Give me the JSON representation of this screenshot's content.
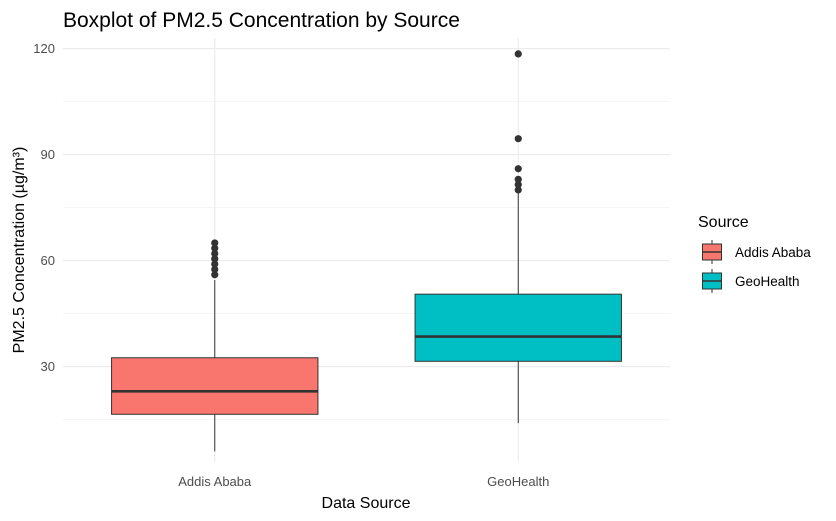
{
  "chart_data": {
    "type": "boxplot",
    "title": "Boxplot of PM2.5 Concentration by Source",
    "xlabel": "Data Source",
    "ylabel": "PM2.5 Concentration (µg/m³)",
    "ylim": [
      3,
      123
    ],
    "yticks": [
      30,
      60,
      90,
      120
    ],
    "categories": [
      "Addis Ababa",
      "GeoHealth"
    ],
    "grid": true,
    "legend": {
      "title": "Source",
      "position": "right",
      "entries": [
        {
          "label": "Addis Ababa",
          "color": "#F8766D"
        },
        {
          "label": "GeoHealth",
          "color": "#00BFC4"
        }
      ]
    },
    "series": [
      {
        "category": "Addis Ababa",
        "color": "#F8766D",
        "min": 6,
        "q1": 16.5,
        "median": 23,
        "q3": 32.5,
        "max": 54.5,
        "outliers": [
          56,
          57.5,
          59,
          60.5,
          62,
          63.5,
          65
        ]
      },
      {
        "category": "GeoHealth",
        "color": "#00BFC4",
        "min": 14,
        "q1": 31.5,
        "median": 38.5,
        "q3": 50.5,
        "max": 79,
        "outliers": [
          80,
          81.5,
          83,
          86,
          94.5,
          118.5
        ]
      }
    ]
  }
}
